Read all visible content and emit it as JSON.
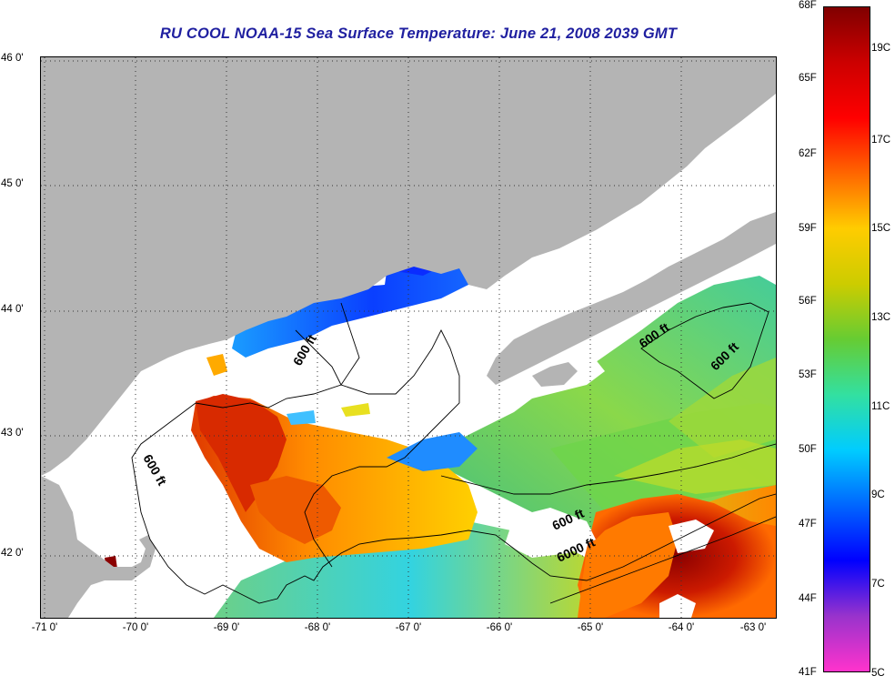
{
  "title": "RU COOL  NOAA-15  Sea Surface Temperature:  June 21, 2008 2039 GMT",
  "map": {
    "x_axis_ticks": [
      "-71 0'",
      "-70 0'",
      "-69 0'",
      "-68 0'",
      "-67 0'",
      "-66 0'",
      "-65 0'",
      "-64 0'",
      "-63 0'"
    ],
    "y_axis_ticks": [
      "46 0'",
      "45 0'",
      "44 0'",
      "43 0'",
      "42 0'"
    ],
    "contour_labels": [
      "600 ft",
      "600 ft",
      "600 ft",
      "600 ft",
      "600 ft",
      "6000 ft"
    ],
    "colors": {
      "land": "#b4b4b4",
      "cloud": "#ffffff",
      "contour": "#000000"
    },
    "grid": "dotted"
  },
  "colorbar": {
    "fahrenheit_labels": [
      "68F",
      "65F",
      "62F",
      "59F",
      "56F",
      "53F",
      "50F",
      "47F",
      "44F",
      "41F"
    ],
    "celsius_labels": [
      "19C",
      "17C",
      "15C",
      "13C",
      "11C",
      "9C",
      "7C",
      "5C"
    ],
    "range_celsius": [
      5,
      20
    ],
    "colors": [
      "#ff33cc",
      "#9933cc",
      "#0000ff",
      "#0066ff",
      "#00ccff",
      "#33e0a0",
      "#66cc33",
      "#cccc00",
      "#ffcc00",
      "#ff6600",
      "#ff0000",
      "#cc0000",
      "#800000"
    ]
  }
}
